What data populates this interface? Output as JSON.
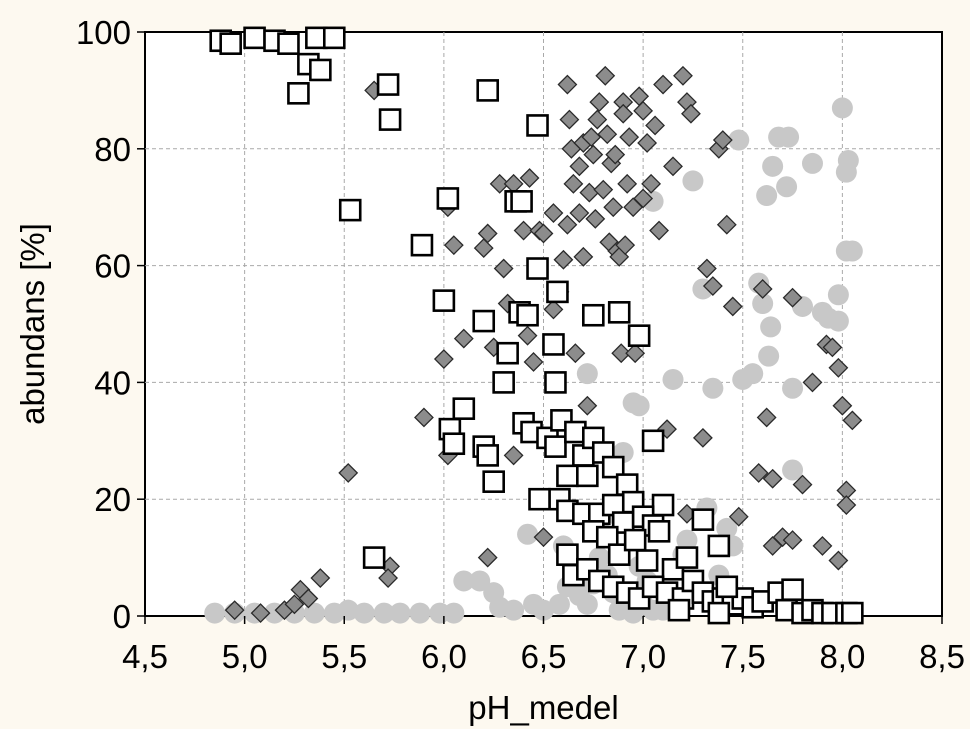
{
  "chart_data": {
    "type": "scatter",
    "xlabel": "pH_medel",
    "ylabel": "abundans [%]",
    "xlim": [
      4.5,
      8.5
    ],
    "ylim": [
      0,
      100
    ],
    "xticks": [
      "4,5",
      "5,0",
      "5,5",
      "6,0",
      "6,5",
      "7,0",
      "7,5",
      "8,0",
      "8,5"
    ],
    "yticks": [
      "0",
      "20",
      "40",
      "60",
      "80",
      "100"
    ],
    "grid": true,
    "legend": "none",
    "series": [
      {
        "marker": "square",
        "color": "#ffffff",
        "stroke": "#000000",
        "points": [
          [
            4.88,
            98.5
          ],
          [
            4.93,
            98
          ],
          [
            5.05,
            99
          ],
          [
            5.15,
            98.5
          ],
          [
            5.22,
            98
          ],
          [
            5.32,
            94.5
          ],
          [
            5.36,
            99
          ],
          [
            5.38,
            93.5
          ],
          [
            5.45,
            99
          ],
          [
            5.27,
            89.5
          ],
          [
            5.72,
            91
          ],
          [
            5.73,
            85
          ],
          [
            5.53,
            69.5
          ],
          [
            5.89,
            63.5
          ],
          [
            6.02,
            71.5
          ],
          [
            6.0,
            54
          ],
          [
            6.22,
            90
          ],
          [
            6.47,
            84
          ],
          [
            6.36,
            71
          ],
          [
            6.39,
            71
          ],
          [
            6.47,
            59.5
          ],
          [
            6.2,
            50.5
          ],
          [
            6.38,
            52
          ],
          [
            6.42,
            51.5
          ],
          [
            6.32,
            45
          ],
          [
            6.3,
            40
          ],
          [
            6.57,
            55.5
          ],
          [
            6.55,
            46.5
          ],
          [
            6.56,
            40
          ],
          [
            6.75,
            51.5
          ],
          [
            6.88,
            52
          ],
          [
            6.98,
            48
          ],
          [
            6.03,
            32
          ],
          [
            6.05,
            29.5
          ],
          [
            6.1,
            35.5
          ],
          [
            6.2,
            29
          ],
          [
            6.22,
            27.5
          ],
          [
            6.25,
            23
          ],
          [
            6.4,
            33
          ],
          [
            6.44,
            31.5
          ],
          [
            6.52,
            30.5
          ],
          [
            6.56,
            29
          ],
          [
            6.59,
            33.5
          ],
          [
            6.62,
            24
          ],
          [
            6.66,
            31.5
          ],
          [
            6.7,
            27.5
          ],
          [
            6.72,
            24
          ],
          [
            6.75,
            30.5
          ],
          [
            6.8,
            28
          ],
          [
            6.85,
            25.5
          ],
          [
            6.92,
            22.5
          ],
          [
            6.95,
            19.5
          ],
          [
            7.05,
            30
          ],
          [
            7.1,
            19
          ],
          [
            6.58,
            20
          ],
          [
            6.62,
            18
          ],
          [
            6.7,
            17.5
          ],
          [
            6.78,
            17.5
          ],
          [
            6.85,
            19
          ],
          [
            6.9,
            16
          ],
          [
            7.0,
            17
          ],
          [
            7.05,
            15.5
          ],
          [
            6.48,
            20
          ],
          [
            6.75,
            14.5
          ],
          [
            6.82,
            13.5
          ],
          [
            6.88,
            10.5
          ],
          [
            6.96,
            13
          ],
          [
            7.02,
            9.5
          ],
          [
            7.08,
            14.5
          ],
          [
            7.15,
            8
          ],
          [
            7.22,
            10
          ],
          [
            7.3,
            16.5
          ],
          [
            7.38,
            12
          ],
          [
            5.65,
            10
          ],
          [
            6.62,
            10.5
          ],
          [
            6.65,
            7
          ],
          [
            6.72,
            8
          ],
          [
            6.78,
            6
          ],
          [
            6.85,
            5
          ],
          [
            6.92,
            4
          ],
          [
            6.98,
            3
          ],
          [
            7.05,
            5
          ],
          [
            7.12,
            4
          ],
          [
            7.2,
            3
          ],
          [
            7.25,
            6
          ],
          [
            7.3,
            4
          ],
          [
            7.35,
            2.5
          ],
          [
            7.4,
            3
          ],
          [
            7.45,
            2
          ],
          [
            7.5,
            3
          ],
          [
            7.55,
            1.5
          ],
          [
            7.6,
            2.5
          ],
          [
            7.68,
            4
          ],
          [
            7.75,
            4.5
          ],
          [
            7.72,
            1
          ],
          [
            7.8,
            0.5
          ],
          [
            7.85,
            1
          ],
          [
            7.9,
            0.5
          ],
          [
            7.95,
            0.5
          ],
          [
            8.02,
            0.5
          ],
          [
            8.05,
            0.5
          ],
          [
            7.42,
            5
          ],
          [
            7.38,
            0.5
          ],
          [
            7.18,
            1
          ]
        ]
      },
      {
        "marker": "diamond",
        "color": "#8c8c8c",
        "stroke": "#2a2a2a",
        "points": [
          [
            4.95,
            1
          ],
          [
            5.08,
            0.5
          ],
          [
            5.2,
            1
          ],
          [
            5.25,
            2
          ],
          [
            5.28,
            4.5
          ],
          [
            5.32,
            3
          ],
          [
            5.38,
            6.5
          ],
          [
            5.52,
            24.5
          ],
          [
            5.65,
            90
          ],
          [
            5.73,
            8.5
          ],
          [
            5.72,
            6.5
          ],
          [
            5.9,
            34
          ],
          [
            6.0,
            44
          ],
          [
            6.02,
            27.5
          ],
          [
            6.02,
            70
          ],
          [
            6.05,
            63.5
          ],
          [
            6.1,
            47.5
          ],
          [
            6.2,
            63
          ],
          [
            6.22,
            65.5
          ],
          [
            6.22,
            10
          ],
          [
            6.25,
            46
          ],
          [
            6.28,
            74
          ],
          [
            6.3,
            59.5
          ],
          [
            6.32,
            53.5
          ],
          [
            6.35,
            27.5
          ],
          [
            6.35,
            74
          ],
          [
            6.4,
            66
          ],
          [
            6.42,
            48
          ],
          [
            6.43,
            75
          ],
          [
            6.45,
            43.5
          ],
          [
            6.48,
            66
          ],
          [
            6.5,
            65.5
          ],
          [
            6.5,
            13.5
          ],
          [
            6.55,
            69
          ],
          [
            6.55,
            52.5
          ],
          [
            6.58,
            55.5
          ],
          [
            6.6,
            61
          ],
          [
            6.62,
            67
          ],
          [
            6.62,
            91
          ],
          [
            6.63,
            85
          ],
          [
            6.64,
            80
          ],
          [
            6.65,
            74
          ],
          [
            6.66,
            45
          ],
          [
            6.68,
            77
          ],
          [
            6.68,
            69
          ],
          [
            6.7,
            61.5
          ],
          [
            6.7,
            81
          ],
          [
            6.72,
            36
          ],
          [
            6.73,
            72.5
          ],
          [
            6.74,
            82
          ],
          [
            6.75,
            79
          ],
          [
            6.76,
            68
          ],
          [
            6.77,
            85
          ],
          [
            6.78,
            88
          ],
          [
            6.8,
            73
          ],
          [
            6.81,
            92.5
          ],
          [
            6.82,
            82.5
          ],
          [
            6.83,
            64
          ],
          [
            6.84,
            77.5
          ],
          [
            6.85,
            70
          ],
          [
            6.86,
            79
          ],
          [
            6.87,
            62.5
          ],
          [
            6.88,
            61.5
          ],
          [
            6.89,
            45
          ],
          [
            6.9,
            88
          ],
          [
            6.9,
            86
          ],
          [
            6.91,
            63.5
          ],
          [
            6.92,
            74
          ],
          [
            6.93,
            82
          ],
          [
            6.95,
            70
          ],
          [
            6.96,
            45
          ],
          [
            6.98,
            89
          ],
          [
            7.0,
            86.5
          ],
          [
            7.02,
            81
          ],
          [
            7.04,
            74
          ],
          [
            7.06,
            84
          ],
          [
            7.08,
            66
          ],
          [
            7.1,
            91
          ],
          [
            7.12,
            32
          ],
          [
            7.15,
            77
          ],
          [
            7.2,
            92.5
          ],
          [
            7.22,
            88
          ],
          [
            7.24,
            86
          ],
          [
            7.22,
            17.5
          ],
          [
            7.3,
            30.5
          ],
          [
            7.32,
            59.5
          ],
          [
            7.35,
            56.5
          ],
          [
            7.38,
            80
          ],
          [
            7.4,
            81.5
          ],
          [
            7.42,
            67
          ],
          [
            7.45,
            53
          ],
          [
            7.48,
            17
          ],
          [
            7.58,
            24.5
          ],
          [
            7.6,
            56
          ],
          [
            7.62,
            34
          ],
          [
            7.65,
            23.5
          ],
          [
            7.65,
            12
          ],
          [
            7.7,
            13.5
          ],
          [
            7.75,
            54.5
          ],
          [
            7.75,
            13
          ],
          [
            7.8,
            22.5
          ],
          [
            7.9,
            12
          ],
          [
            7.92,
            46.5
          ],
          [
            7.95,
            46
          ],
          [
            7.98,
            42.5
          ],
          [
            7.98,
            9.5
          ],
          [
            8.0,
            36
          ],
          [
            8.02,
            21.5
          ],
          [
            8.02,
            19
          ],
          [
            8.05,
            33.5
          ],
          [
            7.85,
            40
          ],
          [
            7.0,
            71.5
          ]
        ]
      },
      {
        "marker": "circle",
        "color": "#c8c8c8",
        "stroke": "none",
        "points": [
          [
            4.85,
            0.5
          ],
          [
            4.95,
            0.5
          ],
          [
            5.05,
            0.5
          ],
          [
            5.15,
            0.5
          ],
          [
            5.25,
            0.5
          ],
          [
            5.35,
            0.5
          ],
          [
            5.45,
            0.5
          ],
          [
            5.52,
            1
          ],
          [
            5.6,
            0.5
          ],
          [
            5.7,
            0.5
          ],
          [
            5.78,
            0.5
          ],
          [
            5.88,
            0.5
          ],
          [
            5.98,
            0.5
          ],
          [
            6.05,
            0.5
          ],
          [
            6.1,
            6
          ],
          [
            6.18,
            6
          ],
          [
            6.25,
            4
          ],
          [
            6.28,
            1.5
          ],
          [
            6.35,
            1
          ],
          [
            6.45,
            2
          ],
          [
            6.42,
            14
          ],
          [
            6.5,
            1
          ],
          [
            6.58,
            2
          ],
          [
            6.6,
            12
          ],
          [
            6.62,
            5
          ],
          [
            6.65,
            6
          ],
          [
            6.68,
            3.5
          ],
          [
            6.7,
            8
          ],
          [
            6.72,
            2
          ],
          [
            6.75,
            5.5
          ],
          [
            6.78,
            10
          ],
          [
            6.8,
            14
          ],
          [
            6.82,
            7
          ],
          [
            6.85,
            4
          ],
          [
            6.88,
            17
          ],
          [
            6.9,
            28
          ],
          [
            6.92,
            3
          ],
          [
            6.95,
            36.5
          ],
          [
            6.98,
            36
          ],
          [
            6.98,
            8.5
          ],
          [
            7.0,
            2
          ],
          [
            7.02,
            6
          ],
          [
            7.05,
            71
          ],
          [
            7.05,
            1
          ],
          [
            7.1,
            1
          ],
          [
            7.15,
            40.5
          ],
          [
            7.2,
            10.5
          ],
          [
            7.22,
            13
          ],
          [
            7.25,
            74.5
          ],
          [
            7.3,
            56
          ],
          [
            7.32,
            18.5
          ],
          [
            7.35,
            39
          ],
          [
            7.38,
            7
          ],
          [
            7.42,
            15
          ],
          [
            7.45,
            12
          ],
          [
            7.48,
            81.5
          ],
          [
            7.5,
            40.5
          ],
          [
            7.55,
            41.5
          ],
          [
            7.58,
            57
          ],
          [
            7.6,
            53.5
          ],
          [
            7.62,
            72
          ],
          [
            7.63,
            44.5
          ],
          [
            7.64,
            49.5
          ],
          [
            7.65,
            77
          ],
          [
            7.68,
            82
          ],
          [
            7.72,
            73.5
          ],
          [
            7.73,
            82
          ],
          [
            7.75,
            39
          ],
          [
            7.75,
            25
          ],
          [
            7.8,
            53
          ],
          [
            7.85,
            77.5
          ],
          [
            7.9,
            52
          ],
          [
            7.93,
            51
          ],
          [
            7.98,
            55
          ],
          [
            7.98,
            50.5
          ],
          [
            8.0,
            87
          ],
          [
            8.02,
            76
          ],
          [
            8.02,
            62.5
          ],
          [
            8.03,
            78
          ],
          [
            8.05,
            62.5
          ],
          [
            6.72,
            41.5
          ],
          [
            6.88,
            1
          ],
          [
            6.95,
            0.5
          ]
        ]
      }
    ]
  }
}
